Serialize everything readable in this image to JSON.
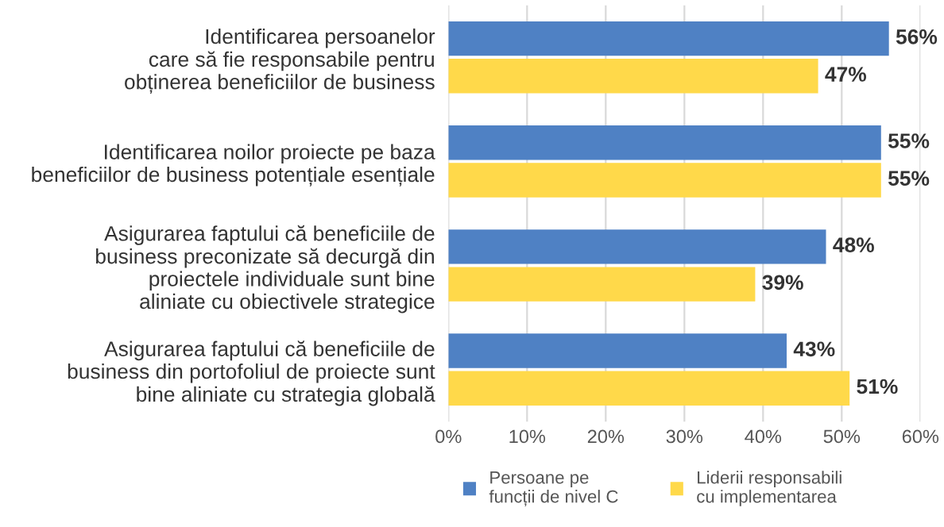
{
  "chart_data": {
    "type": "bar",
    "orientation": "horizontal",
    "categories": [
      "Identificarea persoanelor\ncare să fie responsabile pentru\nobținerea beneficiilor de business",
      "Identificarea noilor proiecte pe baza\nbeneficiilor de business potențiale esențiale",
      "Asigurarea faptului că beneficiile de\nbusiness preconizate să decurgă din\nproiectele individuale sunt bine\naliniate cu obiectivele strategice",
      "Asigurarea faptului că beneficiile de\nbusiness din portofoliul de proiecte sunt\nbine aliniate cu strategia globală"
    ],
    "series": [
      {
        "name": "Persoane pe\nfuncții de nivel C",
        "color": "#4f81c4",
        "values": [
          56,
          55,
          48,
          43
        ],
        "value_labels": [
          "56%",
          "55%",
          "48%",
          "43%"
        ]
      },
      {
        "name": "Liderii responsabili\ncu implementarea",
        "color": "#ffd94a",
        "values": [
          47,
          55,
          39,
          51
        ],
        "value_labels": [
          "47%",
          "55%",
          "39%",
          "51%"
        ]
      }
    ],
    "xlim": [
      0,
      60
    ],
    "xticks": [
      {
        "value": 0,
        "label": "0%"
      },
      {
        "value": 10,
        "label": "10%"
      },
      {
        "value": 20,
        "label": "20%"
      },
      {
        "value": 30,
        "label": "30%"
      },
      {
        "value": 40,
        "label": "40%"
      },
      {
        "value": 50,
        "label": "50%"
      },
      {
        "value": 60,
        "label": "60%"
      }
    ],
    "grid": "x",
    "legend": "bottom"
  }
}
